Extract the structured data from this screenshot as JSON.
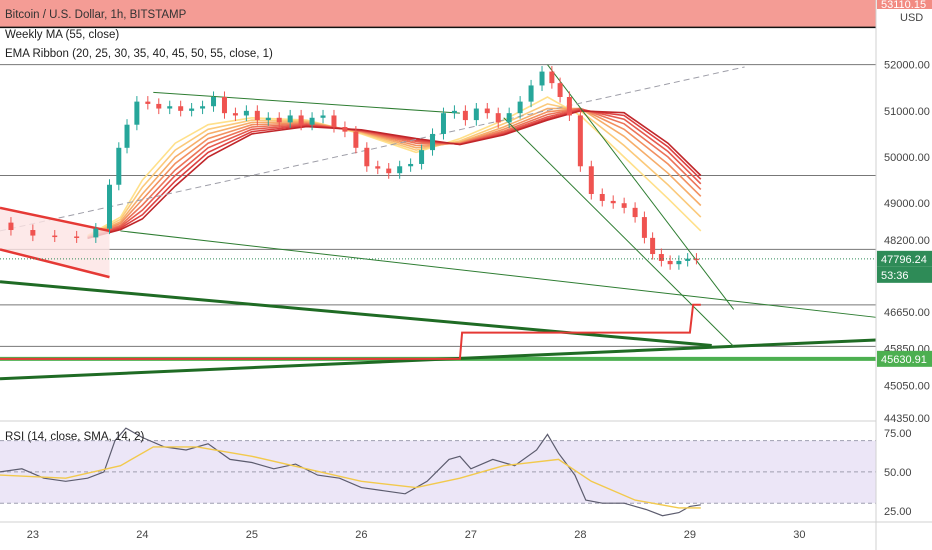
{
  "chart_data": {
    "type": "candlestick",
    "title": "Bitcoin / U.S. Dollar, 1h, BITSTAMP",
    "indicators": [
      "Weekly MA (55, close)",
      "EMA Ribbon (20, 25, 30, 35, 40, 45, 50, 55, close, 1)"
    ],
    "currency": "USD",
    "x_ticks": [
      "23",
      "24",
      "25",
      "26",
      "27",
      "28",
      "29",
      "30"
    ],
    "y_ticks": [
      52000,
      51000,
      50000,
      49000,
      48200,
      46650,
      45850,
      45050,
      44350
    ],
    "y_tick_labels": [
      "52000.00",
      "51000.00",
      "50000.00",
      "49000.00",
      "48200.00",
      "46650.00",
      "45850.00",
      "45050.00",
      "44350.00"
    ],
    "ylim": [
      44350,
      53400
    ],
    "xlim": [
      22.7,
      30.7
    ],
    "price_badges": {
      "top_level": {
        "label": "53110.15",
        "value": 53110,
        "color": "#f28b82"
      },
      "last_price": {
        "label": "47796.24",
        "value": 47796,
        "color": "#2e8b57"
      },
      "countdown": {
        "label": "53:36",
        "color": "#2e8b57"
      },
      "weekly_ma": {
        "label": "45630.91",
        "value": 45631,
        "color": "#4caf50"
      }
    },
    "horizontal_levels": [
      52000,
      49600,
      48000,
      46800,
      45900
    ],
    "price_path": [
      [
        22.7,
        48580
      ],
      [
        22.9,
        48420
      ],
      [
        23.1,
        48300
      ],
      [
        23.3,
        48280
      ],
      [
        23.5,
        48260
      ],
      [
        23.65,
        48450
      ],
      [
        23.75,
        49400
      ],
      [
        23.82,
        50200
      ],
      [
        23.9,
        50700
      ],
      [
        24.0,
        51200
      ],
      [
        24.1,
        51150
      ],
      [
        24.2,
        51050
      ],
      [
        24.3,
        51100
      ],
      [
        24.4,
        51000
      ],
      [
        24.5,
        51050
      ],
      [
        24.6,
        51100
      ],
      [
        24.7,
        51300
      ],
      [
        24.8,
        50950
      ],
      [
        24.9,
        50900
      ],
      [
        25.0,
        51000
      ],
      [
        25.1,
        50800
      ],
      [
        25.2,
        50850
      ],
      [
        25.3,
        50750
      ],
      [
        25.4,
        50900
      ],
      [
        25.5,
        50700
      ],
      [
        25.6,
        50850
      ],
      [
        25.7,
        50900
      ],
      [
        25.8,
        50650
      ],
      [
        25.9,
        50550
      ],
      [
        26.0,
        50200
      ],
      [
        26.1,
        49800
      ],
      [
        26.2,
        49750
      ],
      [
        26.3,
        49650
      ],
      [
        26.4,
        49800
      ],
      [
        26.5,
        49850
      ],
      [
        26.6,
        50150
      ],
      [
        26.7,
        50500
      ],
      [
        26.8,
        50950
      ],
      [
        26.9,
        51000
      ],
      [
        27.0,
        50800
      ],
      [
        27.1,
        51050
      ],
      [
        27.2,
        50950
      ],
      [
        27.3,
        50750
      ],
      [
        27.4,
        50950
      ],
      [
        27.5,
        51200
      ],
      [
        27.6,
        51550
      ],
      [
        27.7,
        51850
      ],
      [
        27.78,
        51600
      ],
      [
        27.85,
        51300
      ],
      [
        27.95,
        50900
      ],
      [
        28.05,
        49800
      ],
      [
        28.15,
        49200
      ],
      [
        28.25,
        49050
      ],
      [
        28.35,
        49000
      ],
      [
        28.45,
        48900
      ],
      [
        28.55,
        48700
      ],
      [
        28.62,
        48250
      ],
      [
        28.7,
        47900
      ],
      [
        28.78,
        47750
      ],
      [
        28.86,
        47680
      ],
      [
        28.94,
        47750
      ],
      [
        29.02,
        47800
      ],
      [
        29.1,
        47796
      ]
    ],
    "ema_ribbon": [
      {
        "name": "EMA 20",
        "color": "#ffe08a",
        "values": [
          [
            23.5,
            48300
          ],
          [
            23.8,
            48700
          ],
          [
            24.0,
            49500
          ],
          [
            24.3,
            50300
          ],
          [
            24.6,
            50700
          ],
          [
            25.0,
            50850
          ],
          [
            25.5,
            50800
          ],
          [
            26.0,
            50500
          ],
          [
            26.5,
            50100
          ],
          [
            26.9,
            50400
          ],
          [
            27.3,
            50800
          ],
          [
            27.7,
            51300
          ],
          [
            28.0,
            50900
          ],
          [
            28.4,
            50000
          ],
          [
            28.8,
            49100
          ],
          [
            29.1,
            48400
          ]
        ]
      },
      {
        "name": "EMA 25",
        "color": "#fbc97a",
        "values": [
          [
            23.5,
            48280
          ],
          [
            23.8,
            48650
          ],
          [
            24.0,
            49350
          ],
          [
            24.3,
            50150
          ],
          [
            24.6,
            50600
          ],
          [
            25.0,
            50800
          ],
          [
            25.5,
            50780
          ],
          [
            26.0,
            50520
          ],
          [
            26.5,
            50150
          ],
          [
            26.9,
            50350
          ],
          [
            27.3,
            50720
          ],
          [
            27.7,
            51150
          ],
          [
            28.0,
            51000
          ],
          [
            28.4,
            50250
          ],
          [
            28.8,
            49400
          ],
          [
            29.1,
            48700
          ]
        ]
      },
      {
        "name": "EMA 30",
        "color": "#f6ad6a",
        "values": [
          [
            23.5,
            48270
          ],
          [
            23.8,
            48600
          ],
          [
            24.0,
            49200
          ],
          [
            24.3,
            50000
          ],
          [
            24.6,
            50500
          ],
          [
            25.0,
            50750
          ],
          [
            25.5,
            50760
          ],
          [
            26.0,
            50540
          ],
          [
            26.5,
            50200
          ],
          [
            26.9,
            50320
          ],
          [
            27.3,
            50650
          ],
          [
            27.7,
            51050
          ],
          [
            28.0,
            51050
          ],
          [
            28.4,
            50450
          ],
          [
            28.8,
            49650
          ],
          [
            29.1,
            48950
          ]
        ]
      },
      {
        "name": "EMA 35",
        "color": "#f29060",
        "values": [
          [
            23.5,
            48260
          ],
          [
            23.8,
            48560
          ],
          [
            24.0,
            49080
          ],
          [
            24.3,
            49860
          ],
          [
            24.6,
            50400
          ],
          [
            25.0,
            50700
          ],
          [
            25.5,
            50740
          ],
          [
            26.0,
            50550
          ],
          [
            26.5,
            50250
          ],
          [
            26.9,
            50300
          ],
          [
            27.3,
            50600
          ],
          [
            27.7,
            50980
          ],
          [
            28.0,
            51050
          ],
          [
            28.4,
            50600
          ],
          [
            28.8,
            49850
          ],
          [
            29.1,
            49150
          ]
        ]
      },
      {
        "name": "EMA 40",
        "color": "#ec7358",
        "values": [
          [
            23.5,
            48255
          ],
          [
            23.8,
            48520
          ],
          [
            24.0,
            48960
          ],
          [
            24.3,
            49720
          ],
          [
            24.6,
            50300
          ],
          [
            25.0,
            50650
          ],
          [
            25.5,
            50720
          ],
          [
            26.0,
            50560
          ],
          [
            26.5,
            50300
          ],
          [
            26.9,
            50290
          ],
          [
            27.3,
            50560
          ],
          [
            27.7,
            50920
          ],
          [
            28.0,
            51050
          ],
          [
            28.4,
            50720
          ],
          [
            28.8,
            50000
          ],
          [
            29.1,
            49300
          ]
        ]
      },
      {
        "name": "EMA 45",
        "color": "#e55a4e",
        "values": [
          [
            23.5,
            48250
          ],
          [
            23.8,
            48490
          ],
          [
            24.0,
            48850
          ],
          [
            24.3,
            49600
          ],
          [
            24.6,
            50200
          ],
          [
            25.0,
            50600
          ],
          [
            25.5,
            50700
          ],
          [
            26.0,
            50570
          ],
          [
            26.5,
            50340
          ],
          [
            26.9,
            50280
          ],
          [
            27.3,
            50530
          ],
          [
            27.7,
            50870
          ],
          [
            28.0,
            51040
          ],
          [
            28.4,
            50820
          ],
          [
            28.8,
            50120
          ],
          [
            29.1,
            49420
          ]
        ]
      },
      {
        "name": "EMA 50",
        "color": "#dd4040",
        "values": [
          [
            23.5,
            48245
          ],
          [
            23.8,
            48460
          ],
          [
            24.0,
            48750
          ],
          [
            24.3,
            49480
          ],
          [
            24.6,
            50100
          ],
          [
            25.0,
            50550
          ],
          [
            25.5,
            50680
          ],
          [
            26.0,
            50580
          ],
          [
            26.5,
            50370
          ],
          [
            26.9,
            50275
          ],
          [
            27.3,
            50500
          ],
          [
            27.7,
            50830
          ],
          [
            28.0,
            51020
          ],
          [
            28.4,
            50900
          ],
          [
            28.8,
            50220
          ],
          [
            29.1,
            49520
          ]
        ]
      },
      {
        "name": "EMA 55",
        "color": "#c0262a",
        "values": [
          [
            23.5,
            48240
          ],
          [
            23.8,
            48430
          ],
          [
            24.0,
            48660
          ],
          [
            24.3,
            49370
          ],
          [
            24.6,
            50000
          ],
          [
            25.0,
            50500
          ],
          [
            25.5,
            50660
          ],
          [
            26.0,
            50590
          ],
          [
            26.5,
            50400
          ],
          [
            26.9,
            50270
          ],
          [
            27.3,
            50480
          ],
          [
            27.7,
            50800
          ],
          [
            28.0,
            51000
          ],
          [
            28.4,
            50960
          ],
          [
            28.8,
            50300
          ],
          [
            29.1,
            49600
          ]
        ]
      }
    ],
    "weekly_ma_steps": [
      [
        22.7,
        45630
      ],
      [
        26.9,
        45630
      ],
      [
        26.92,
        46200
      ],
      [
        29.0,
        46200
      ],
      [
        29.03,
        46800
      ],
      [
        29.1,
        46800
      ]
    ],
    "trend_lines": [
      {
        "name": "long-support",
        "color": "#1f6b24",
        "width": 3,
        "points": [
          [
            22.7,
            45200
          ],
          [
            30.7,
            46040
          ]
        ]
      },
      {
        "name": "descending-resistance",
        "color": "#1f6b24",
        "width": 3,
        "points": [
          [
            22.7,
            47300
          ],
          [
            29.2,
            45920
          ]
        ]
      },
      {
        "name": "thin-descending",
        "color": "#2e7d32",
        "width": 1,
        "points": [
          [
            23.8,
            48400
          ],
          [
            30.7,
            46530
          ]
        ]
      },
      {
        "name": "channel-upper-a",
        "color": "#2e7d32",
        "width": 1,
        "points": [
          [
            27.7,
            52000
          ],
          [
            29.4,
            46700
          ]
        ]
      },
      {
        "name": "channel-upper-b",
        "color": "#2e7d32",
        "width": 1,
        "points": [
          [
            27.3,
            50850
          ],
          [
            29.4,
            45900
          ]
        ]
      },
      {
        "name": "ribbon-channel",
        "color": "#2e7d32",
        "width": 1,
        "points": [
          [
            24.1,
            51400
          ],
          [
            26.9,
            50950
          ]
        ]
      },
      {
        "name": "dashed-rising",
        "color": "#9e9ea8",
        "width": 1,
        "dash": true,
        "points": [
          [
            22.7,
            48400
          ],
          [
            29.5,
            51950
          ]
        ]
      }
    ],
    "red_channel": [
      {
        "points": [
          [
            22.7,
            48900
          ],
          [
            23.7,
            48400
          ]
        ]
      },
      {
        "points": [
          [
            22.7,
            48000
          ],
          [
            23.7,
            47400
          ]
        ]
      }
    ],
    "rsi": {
      "label": "RSI (14, close, SMA, 14, 2)",
      "y_ticks": [
        75,
        50,
        25
      ],
      "y_tick_labels": [
        "75.00",
        "50.00",
        "25.00"
      ],
      "ylim": [
        18,
        80
      ],
      "band": [
        30,
        70
      ],
      "values": [
        [
          22.7,
          50
        ],
        [
          22.9,
          52
        ],
        [
          23.1,
          46
        ],
        [
          23.3,
          44
        ],
        [
          23.5,
          46
        ],
        [
          23.65,
          50
        ],
        [
          23.75,
          70
        ],
        [
          23.85,
          78
        ],
        [
          24.0,
          72
        ],
        [
          24.2,
          66
        ],
        [
          24.4,
          64
        ],
        [
          24.6,
          68
        ],
        [
          24.8,
          58
        ],
        [
          25.0,
          56
        ],
        [
          25.2,
          52
        ],
        [
          25.4,
          55
        ],
        [
          25.6,
          48
        ],
        [
          25.8,
          46
        ],
        [
          26.0,
          40
        ],
        [
          26.2,
          38
        ],
        [
          26.4,
          36
        ],
        [
          26.6,
          44
        ],
        [
          26.8,
          58
        ],
        [
          26.9,
          60
        ],
        [
          27.0,
          52
        ],
        [
          27.2,
          58
        ],
        [
          27.4,
          54
        ],
        [
          27.6,
          64
        ],
        [
          27.7,
          74
        ],
        [
          27.8,
          62
        ],
        [
          27.95,
          48
        ],
        [
          28.05,
          32
        ],
        [
          28.2,
          30
        ],
        [
          28.4,
          30
        ],
        [
          28.6,
          26
        ],
        [
          28.75,
          22
        ],
        [
          28.9,
          24
        ],
        [
          29.0,
          28
        ],
        [
          29.1,
          29
        ]
      ],
      "sma": [
        [
          22.7,
          48
        ],
        [
          23.3,
          46
        ],
        [
          23.8,
          54
        ],
        [
          24.1,
          66
        ],
        [
          24.5,
          66
        ],
        [
          25.0,
          60
        ],
        [
          25.5,
          52
        ],
        [
          26.0,
          44
        ],
        [
          26.5,
          40
        ],
        [
          26.9,
          46
        ],
        [
          27.3,
          54
        ],
        [
          27.8,
          58
        ],
        [
          28.1,
          44
        ],
        [
          28.5,
          32
        ],
        [
          28.9,
          27
        ],
        [
          29.1,
          27
        ]
      ]
    }
  }
}
